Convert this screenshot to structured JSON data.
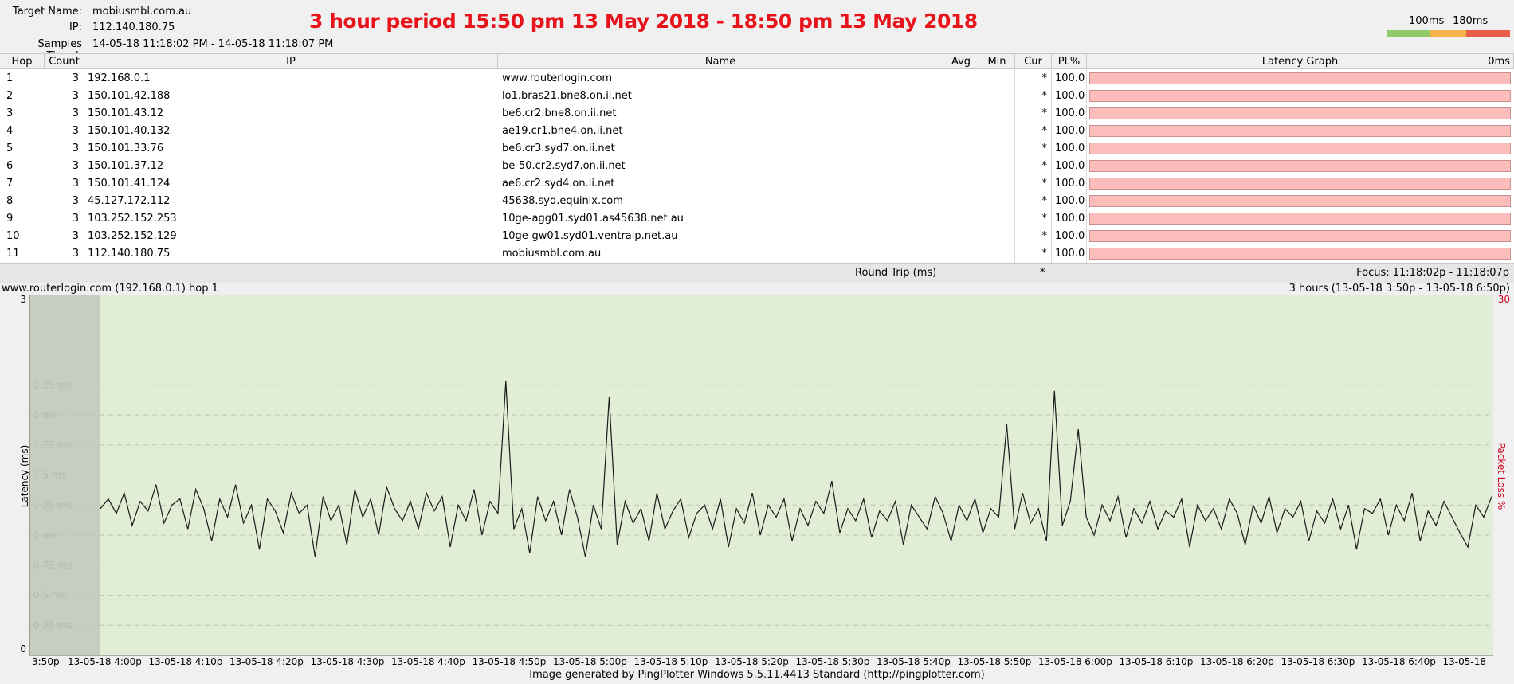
{
  "header": {
    "target_label": "Target Name:",
    "target_value": "mobiusmbl.com.au",
    "ip_label": "IP:",
    "ip_value": "112.140.180.75",
    "samples_label": "Samples Timed:",
    "samples_value": "14-05-18 11:18:02 PM - 14-05-18 11:18:07 PM",
    "annotation": "3 hour period 15:50 pm 13 May 2018 - 18:50 pm 13 May 2018",
    "legend": {
      "label_1": "100ms",
      "label_2": "180ms",
      "colors": [
        "#8fcb6b",
        "#f5b447",
        "#e8604c"
      ]
    }
  },
  "table": {
    "columns": [
      "Hop",
      "Count",
      "IP",
      "Name",
      "Avg",
      "Min",
      "Cur",
      "PL%",
      "Latency Graph",
      "0ms"
    ],
    "rows": [
      {
        "hop": "1",
        "count": "3",
        "ip": "192.168.0.1",
        "name": "www.routerlogin.com",
        "cur": "*",
        "pl": "100.0"
      },
      {
        "hop": "2",
        "count": "3",
        "ip": "150.101.42.188",
        "name": "lo1.bras21.bne8.on.ii.net",
        "cur": "*",
        "pl": "100.0"
      },
      {
        "hop": "3",
        "count": "3",
        "ip": "150.101.43.12",
        "name": "be6.cr2.bne8.on.ii.net",
        "cur": "*",
        "pl": "100.0"
      },
      {
        "hop": "4",
        "count": "3",
        "ip": "150.101.40.132",
        "name": "ae19.cr1.bne4.on.ii.net",
        "cur": "*",
        "pl": "100.0"
      },
      {
        "hop": "5",
        "count": "3",
        "ip": "150.101.33.76",
        "name": "be6.cr3.syd7.on.ii.net",
        "cur": "*",
        "pl": "100.0"
      },
      {
        "hop": "6",
        "count": "3",
        "ip": "150.101.37.12",
        "name": "be-50.cr2.syd7.on.ii.net",
        "cur": "*",
        "pl": "100.0"
      },
      {
        "hop": "7",
        "count": "3",
        "ip": "150.101.41.124",
        "name": "ae6.cr2.syd4.on.ii.net",
        "cur": "*",
        "pl": "100.0"
      },
      {
        "hop": "8",
        "count": "3",
        "ip": "45.127.172.112",
        "name": "45638.syd.equinix.com",
        "cur": "*",
        "pl": "100.0"
      },
      {
        "hop": "9",
        "count": "3",
        "ip": "103.252.152.253",
        "name": "10ge-agg01.syd01.as45638.net.au",
        "cur": "*",
        "pl": "100.0"
      },
      {
        "hop": "10",
        "count": "3",
        "ip": "103.252.152.129",
        "name": "10ge-gw01.syd01.ventraip.net.au",
        "cur": "*",
        "pl": "100.0"
      },
      {
        "hop": "11",
        "count": "3",
        "ip": "112.140.180.75",
        "name": "mobiusmbl.com.au",
        "cur": "*",
        "pl": "100.0"
      }
    ],
    "footer": {
      "label": "Round Trip (ms)",
      "cur": "*",
      "focus": "Focus: 11:18:02p - 11:18:07p"
    }
  },
  "graph": {
    "left_title": "www.routerlogin.com (192.168.0.1) hop 1",
    "right_title": "3 hours (13-05-18 3:50p - 13-05-18 6:50p)",
    "y_top": "3",
    "y_bottom": "0",
    "y_right_top": "30",
    "y_axis_label": "Latency (ms)",
    "right_axis_label": "Packet Loss %",
    "footer": "Image generated by PingPlotter Windows 5.5.11.4413 Standard (http://pingplotter.com)"
  },
  "chart_data": {
    "type": "line",
    "ylabel": "Latency (ms)",
    "y2label": "Packet Loss %",
    "ylim": [
      0,
      3
    ],
    "y2lim": [
      0,
      30
    ],
    "y_ticks": [
      "2.25 ms",
      "2 ms",
      "1.75 ms",
      "1.5 ms",
      "1.25 ms",
      "1 ms",
      "0.75 ms",
      "0.5 ms",
      "0.25 ms"
    ],
    "x_ticks": [
      "3:50p",
      "13-05-18 4:00p",
      "13-05-18 4:10p",
      "13-05-18 4:20p",
      "13-05-18 4:30p",
      "13-05-18 4:40p",
      "13-05-18 4:50p",
      "13-05-18 5:00p",
      "13-05-18 5:10p",
      "13-05-18 5:20p",
      "13-05-18 5:30p",
      "13-05-18 5:40p",
      "13-05-18 5:50p",
      "13-05-18 6:00p",
      "13-05-18 6:10p",
      "13-05-18 6:20p",
      "13-05-18 6:30p",
      "13-05-18 6:40p",
      "13-05-18"
    ],
    "series": [
      {
        "values": [
          1.22,
          1.3,
          1.18,
          1.35,
          1.08,
          1.28,
          1.2,
          1.42,
          1.1,
          1.25,
          1.3,
          1.05,
          1.38,
          1.22,
          0.95,
          1.3,
          1.15,
          1.42,
          1.1,
          1.25,
          0.88,
          1.3,
          1.2,
          1.02,
          1.35,
          1.18,
          1.25,
          0.82,
          1.32,
          1.12,
          1.25,
          0.92,
          1.38,
          1.15,
          1.3,
          1.0,
          1.4,
          1.22,
          1.12,
          1.28,
          1.05,
          1.35,
          1.2,
          1.32,
          0.9,
          1.25,
          1.12,
          1.38,
          1.0,
          1.28,
          1.18,
          2.28,
          1.05,
          1.22,
          0.85,
          1.32,
          1.12,
          1.28,
          1.0,
          1.38,
          1.15,
          0.82,
          1.25,
          1.05,
          2.15,
          0.92,
          1.28,
          1.1,
          1.22,
          0.95,
          1.35,
          1.05,
          1.2,
          1.3,
          0.98,
          1.18,
          1.25,
          1.05,
          1.3,
          0.9,
          1.22,
          1.1,
          1.35,
          1.0,
          1.25,
          1.15,
          1.3,
          0.95,
          1.22,
          1.08,
          1.28,
          1.18,
          1.45,
          1.02,
          1.22,
          1.12,
          1.3,
          0.98,
          1.2,
          1.12,
          1.28,
          0.92,
          1.25,
          1.15,
          1.05,
          1.32,
          1.18,
          0.95,
          1.25,
          1.12,
          1.3,
          1.02,
          1.22,
          1.15,
          1.92,
          1.05,
          1.35,
          1.1,
          1.22,
          0.95,
          2.2,
          1.08,
          1.28,
          1.88,
          1.15,
          1.0,
          1.25,
          1.12,
          1.32,
          0.98,
          1.22,
          1.1,
          1.28,
          1.05,
          1.2,
          1.15,
          1.3,
          0.9,
          1.25,
          1.12,
          1.22,
          1.05,
          1.3,
          1.18,
          0.92,
          1.25,
          1.1,
          1.32,
          1.02,
          1.22,
          1.15,
          1.28,
          0.95,
          1.2,
          1.1,
          1.3,
          1.05,
          1.25,
          0.88,
          1.22,
          1.18,
          1.3,
          1.0,
          1.25,
          1.12,
          1.35,
          0.95,
          1.2,
          1.08,
          1.28,
          1.15,
          1.02,
          0.9,
          1.25,
          1.15,
          1.32
        ]
      }
    ]
  }
}
